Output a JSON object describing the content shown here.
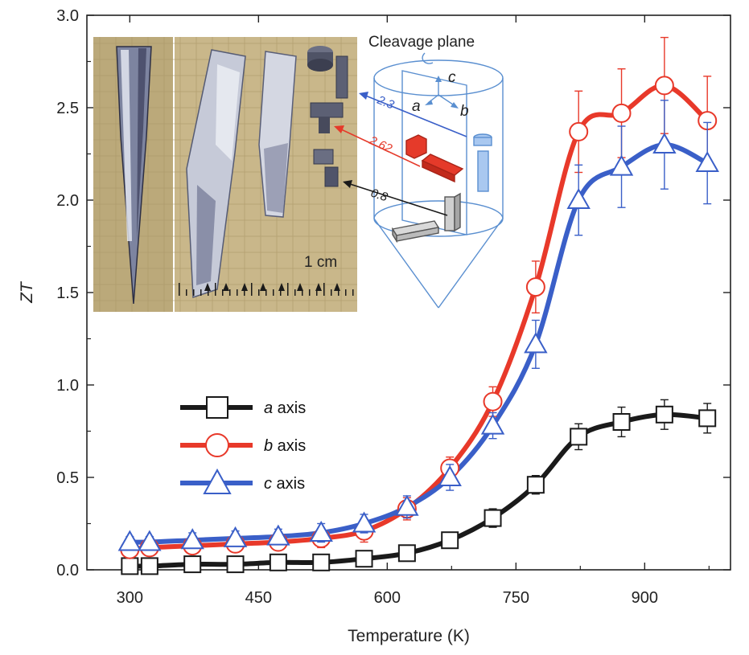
{
  "chart_data": {
    "type": "line",
    "title": "",
    "xlabel": "Temperature (K)",
    "ylabel": "ZT",
    "xlim": [
      250,
      1000
    ],
    "ylim": [
      0,
      3.0
    ],
    "xticks": [
      "300",
      "450",
      "600",
      "750",
      "900"
    ],
    "yticks": [
      "0.0",
      "0.5",
      "1.0",
      "1.5",
      "2.0",
      "2.5",
      "3.0"
    ],
    "grid": false,
    "legend_position": "middle-left",
    "series": [
      {
        "name": "a axis",
        "legend_italic": "a",
        "legend_rest": " axis",
        "color": "#1a1a1a",
        "marker": "square",
        "x": [
          300,
          323,
          373,
          423,
          473,
          523,
          573,
          623,
          673,
          723,
          773,
          823,
          873,
          923,
          973
        ],
        "y": [
          0.02,
          0.02,
          0.03,
          0.03,
          0.04,
          0.04,
          0.06,
          0.09,
          0.16,
          0.28,
          0.46,
          0.72,
          0.8,
          0.84,
          0.82
        ],
        "err": [
          0.02,
          0.02,
          0.02,
          0.02,
          0.02,
          0.03,
          0.03,
          0.04,
          0.04,
          0.05,
          0.05,
          0.07,
          0.08,
          0.08,
          0.08
        ]
      },
      {
        "name": "b axis",
        "legend_italic": "b",
        "legend_rest": " axis",
        "color": "#e8392a",
        "marker": "circle",
        "x": [
          300,
          323,
          373,
          423,
          473,
          523,
          573,
          623,
          673,
          723,
          773,
          823,
          873,
          923,
          973
        ],
        "y": [
          0.11,
          0.12,
          0.13,
          0.14,
          0.15,
          0.17,
          0.21,
          0.33,
          0.55,
          0.91,
          1.53,
          2.37,
          2.47,
          2.62,
          2.43
        ],
        "err": [
          0.03,
          0.03,
          0.04,
          0.04,
          0.04,
          0.05,
          0.06,
          0.06,
          0.06,
          0.08,
          0.14,
          0.22,
          0.24,
          0.26,
          0.24
        ]
      },
      {
        "name": "c axis",
        "legend_italic": "c",
        "legend_rest": " axis",
        "color": "#3a5fc8",
        "marker": "triangle",
        "x": [
          300,
          323,
          373,
          423,
          473,
          523,
          573,
          623,
          673,
          723,
          773,
          823,
          873,
          923,
          973
        ],
        "y": [
          0.15,
          0.15,
          0.16,
          0.17,
          0.18,
          0.2,
          0.25,
          0.34,
          0.5,
          0.78,
          1.22,
          2.0,
          2.18,
          2.3,
          2.2
        ],
        "err": [
          0.03,
          0.03,
          0.04,
          0.04,
          0.04,
          0.05,
          0.05,
          0.06,
          0.07,
          0.07,
          0.13,
          0.19,
          0.22,
          0.24,
          0.22
        ]
      }
    ],
    "inset": {
      "photo_scale_label": "1 cm",
      "cleavage_label": "Cleavage plane",
      "axis_labels": [
        "a",
        "b",
        "c"
      ],
      "annotations": [
        {
          "text": "2.3",
          "color": "#3a5fc8"
        },
        {
          "text": "2.62",
          "color": "#e8392a"
        },
        {
          "text": "0.8",
          "color": "#1a1a1a"
        }
      ]
    }
  }
}
